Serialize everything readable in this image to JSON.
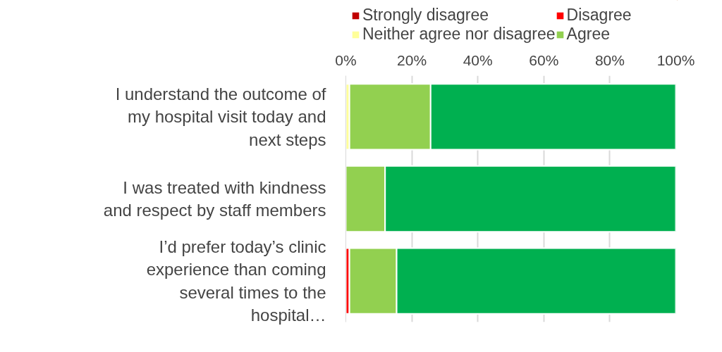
{
  "chart_data": {
    "type": "bar",
    "orientation": "horizontal",
    "stacked": true,
    "categories": [
      "I understand the outcome of my hospital visit today and next steps",
      "I was treated with kindness and respect by staff members",
      "I’d prefer today’s clinic experience than coming several times to the hospital…"
    ],
    "series": [
      {
        "name": "Strongly disagree",
        "color": "#c00000",
        "values": [
          0,
          0,
          0
        ]
      },
      {
        "name": "Disagree",
        "color": "#ff0000",
        "values": [
          0,
          0,
          1.1
        ]
      },
      {
        "name": "Neither agree nor disagree",
        "color": "#ffff99",
        "values": [
          1.1,
          0,
          0
        ]
      },
      {
        "name": "Agree",
        "color": "#92d050",
        "values": [
          24.6,
          11.9,
          14.3
        ]
      },
      {
        "color": "#00b050",
        "values": [
          74.3,
          88.1,
          84.6
        ]
      }
    ],
    "xlim": [
      0,
      100
    ],
    "xticks": [
      {
        "value": 0,
        "label": "0%"
      },
      {
        "value": 20,
        "label": "20%"
      },
      {
        "value": 40,
        "label": "40%"
      },
      {
        "value": 60,
        "label": "60%"
      },
      {
        "value": 80,
        "label": "80%"
      },
      {
        "value": 100,
        "label": "100%"
      }
    ],
    "grid": "x",
    "legend": "top"
  }
}
